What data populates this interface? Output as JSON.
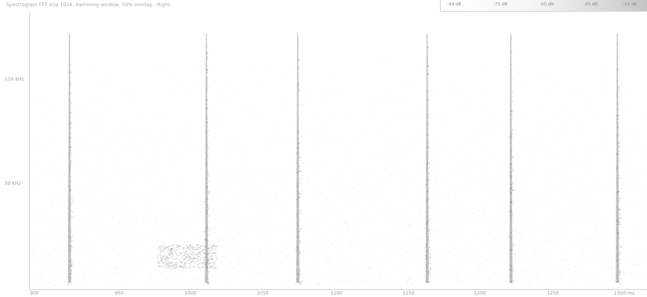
{
  "header": {
    "caption": "Spectrogram  FFT size 1024, Hamming window, 50% overlap  -  Right"
  },
  "legend": {
    "labels": [
      "-99 dB",
      "-75 dB",
      "-50 dB",
      "-25 dB",
      "-10 dB"
    ]
  },
  "y_axis": {
    "labels": [
      "150 kHz",
      "50 kHz"
    ]
  },
  "x_axis": {
    "labels": [
      "900",
      "950",
      "1000",
      "1050",
      "1100",
      "1150",
      "1200",
      "1250",
      "1300 ms"
    ]
  },
  "colors": {
    "background": "#ffffff",
    "streak": "#8c8c8c",
    "noise": "#b0b0b0"
  },
  "transients": {
    "approx_times": [
      925,
      1015,
      1075,
      1160,
      1215,
      1285
    ]
  }
}
